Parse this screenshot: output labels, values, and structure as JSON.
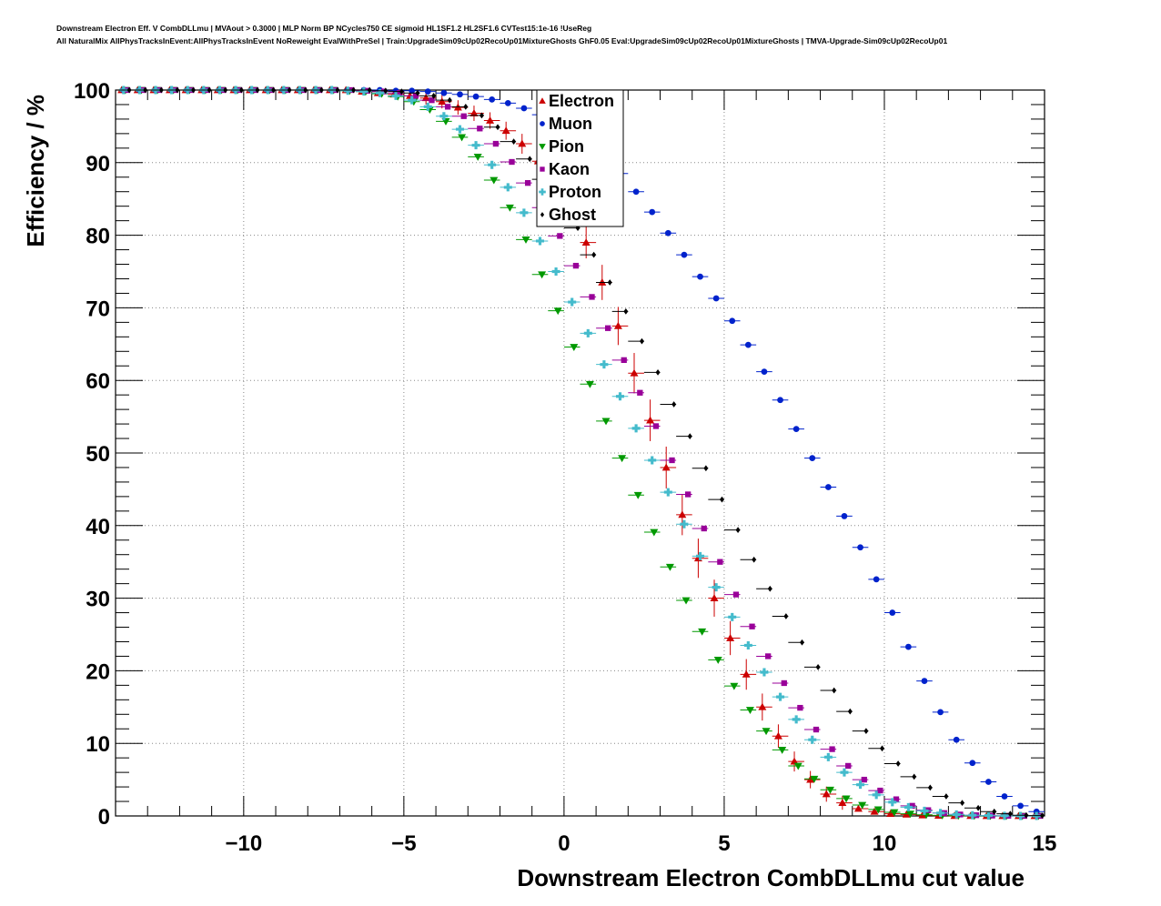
{
  "header": {
    "line1": "Downstream Electron Eff. V CombDLLmu | MVAout > 0.3000 | MLP Norm BP NCycles750 CE sigmoid HL1SF1.2 HL2SF1.6 CVTest15:1e-16 !UseReg",
    "line2": "All NaturalMix AllPhysTracksInEvent:AllPhysTracksInEvent NoReweight EvalWithPreSel | Train:UpgradeSim09cUp02RecoUp01MixtureGhosts GhF0.05 Eval:UpgradeSim09cUp02RecoUp01MixtureGhosts | TMVA-Upgrade-Sim09cUp02RecoUp01"
  },
  "chart_data": {
    "type": "scatter",
    "xlabel": "Downstream Electron CombDLLmu cut value",
    "ylabel": "Efficiency / %",
    "xlim": [
      -14,
      15
    ],
    "ylim": [
      0,
      100
    ],
    "x_ticks": [
      -10,
      -5,
      0,
      5,
      10,
      15
    ],
    "x_tick_labels": [
      "−10",
      "−5",
      "0",
      "5",
      "10",
      "15"
    ],
    "y_ticks": [
      0,
      10,
      20,
      30,
      40,
      50,
      60,
      70,
      80,
      90,
      100
    ],
    "y_tick_labels": [
      "0",
      "10",
      "20",
      "30",
      "40",
      "50",
      "60",
      "70",
      "80",
      "90",
      "100"
    ],
    "grid": true,
    "legend_position": "top-center",
    "x": [
      -13.75,
      -13.25,
      -12.75,
      -12.25,
      -11.75,
      -11.25,
      -10.75,
      -10.25,
      -9.75,
      -9.25,
      -8.75,
      -8.25,
      -7.75,
      -7.25,
      -6.75,
      -6.25,
      -5.75,
      -5.25,
      -4.75,
      -4.25,
      -3.75,
      -3.25,
      -2.75,
      -2.25,
      -1.75,
      -1.25,
      -0.75,
      -0.25,
      0.25,
      0.75,
      1.25,
      1.75,
      2.25,
      2.75,
      3.25,
      3.75,
      4.25,
      4.75,
      5.25,
      5.75,
      6.25,
      6.75,
      7.25,
      7.75,
      8.25,
      8.75,
      9.25,
      9.75,
      10.25,
      10.75,
      11.25,
      11.75,
      12.25,
      12.75,
      13.25,
      13.75,
      14.25,
      14.75
    ],
    "series": [
      {
        "name": "Electron",
        "color": "#cc0000",
        "marker": "triangle-up",
        "values": [
          100,
          100,
          100,
          100,
          100,
          100,
          100,
          100,
          100,
          100,
          100,
          100,
          100,
          100,
          100,
          99.8,
          99.6,
          99.4,
          99.2,
          98.9,
          98.4,
          97.6,
          96.8,
          95.8,
          94.4,
          92.6,
          90.2,
          87.2,
          83.5,
          79.0,
          73.5,
          67.5,
          61.0,
          54.5,
          48.0,
          41.5,
          35.5,
          30.0,
          24.5,
          19.5,
          15.0,
          11.0,
          7.5,
          5.0,
          3.0,
          1.8,
          1.0,
          0.6,
          0.3,
          0.2,
          0.1,
          0.05,
          0.02,
          0.01,
          0,
          0,
          0,
          0
        ]
      },
      {
        "name": "Muon",
        "color": "#0022cc",
        "marker": "circle",
        "values": [
          100,
          100,
          100,
          100,
          100,
          100,
          100,
          100,
          100,
          100,
          100,
          100,
          100,
          100,
          100,
          100,
          100,
          99.9,
          99.9,
          99.8,
          99.6,
          99.4,
          99.1,
          98.7,
          98.2,
          97.5,
          96.6,
          95.5,
          94.2,
          92.6,
          90.7,
          88.5,
          86.0,
          83.2,
          80.3,
          77.3,
          74.3,
          71.3,
          68.2,
          64.9,
          61.2,
          57.3,
          53.3,
          49.3,
          45.3,
          41.3,
          37.0,
          32.6,
          28.0,
          23.3,
          18.6,
          14.3,
          10.5,
          7.3,
          4.7,
          2.7,
          1.4,
          0.6
        ]
      },
      {
        "name": "Pion",
        "color": "#009900",
        "marker": "triangle-down",
        "values": [
          100,
          100,
          100,
          100,
          100,
          100,
          100,
          100,
          100,
          100,
          100,
          100,
          100,
          100,
          99.9,
          99.8,
          99.5,
          99.1,
          98.4,
          97.3,
          95.7,
          93.5,
          90.8,
          87.6,
          83.8,
          79.4,
          74.6,
          69.6,
          64.6,
          59.5,
          54.4,
          49.3,
          44.2,
          39.1,
          34.3,
          29.7,
          25.4,
          21.5,
          17.9,
          14.6,
          11.7,
          9.1,
          6.9,
          5.1,
          3.6,
          2.4,
          1.5,
          0.9,
          0.5,
          0.3,
          0.15,
          0.08,
          0.03,
          0.01,
          0,
          0,
          0,
          0
        ]
      },
      {
        "name": "Kaon",
        "color": "#990099",
        "marker": "square",
        "values": [
          100,
          100,
          100,
          100,
          100,
          100,
          100,
          100,
          100,
          100,
          100,
          100,
          100,
          100,
          100,
          99.9,
          99.8,
          99.6,
          99.2,
          98.6,
          97.7,
          96.4,
          94.7,
          92.6,
          90.1,
          87.2,
          83.8,
          79.9,
          75.8,
          71.5,
          67.2,
          62.8,
          58.3,
          53.7,
          49.0,
          44.3,
          39.6,
          35.0,
          30.5,
          26.1,
          22.0,
          18.3,
          14.9,
          11.9,
          9.2,
          6.9,
          5.0,
          3.5,
          2.3,
          1.4,
          0.8,
          0.4,
          0.2,
          0.1,
          0.05,
          0.02,
          0,
          0
        ]
      },
      {
        "name": "Proton",
        "color": "#44bbcc",
        "marker": "cross",
        "values": [
          100,
          100,
          100,
          100,
          100,
          100,
          100,
          100,
          100,
          100,
          100,
          100,
          100,
          100,
          99.9,
          99.8,
          99.6,
          99.2,
          98.6,
          97.7,
          96.4,
          94.6,
          92.4,
          89.7,
          86.6,
          83.1,
          79.2,
          75.0,
          70.8,
          66.5,
          62.2,
          57.8,
          53.4,
          49.0,
          44.6,
          40.2,
          35.8,
          31.5,
          27.4,
          23.5,
          19.8,
          16.4,
          13.3,
          10.5,
          8.1,
          6.0,
          4.3,
          2.9,
          1.9,
          1.2,
          0.7,
          0.4,
          0.2,
          0.1,
          0.05,
          0.02,
          0,
          0
        ]
      },
      {
        "name": "Ghost",
        "color": "#000000",
        "marker": "diamond",
        "values": [
          100,
          100,
          100,
          100,
          100,
          100,
          100,
          100,
          100,
          100,
          100,
          100,
          100,
          100,
          100,
          100,
          99.9,
          99.8,
          99.6,
          99.2,
          98.6,
          97.7,
          96.5,
          94.9,
          92.9,
          90.5,
          87.7,
          84.5,
          81.0,
          77.3,
          73.5,
          69.5,
          65.4,
          61.1,
          56.7,
          52.3,
          47.9,
          43.6,
          39.4,
          35.3,
          31.3,
          27.5,
          23.9,
          20.5,
          17.3,
          14.4,
          11.7,
          9.3,
          7.2,
          5.4,
          3.9,
          2.7,
          1.8,
          1.1,
          0.6,
          0.3,
          0.1,
          0.05
        ]
      }
    ]
  }
}
